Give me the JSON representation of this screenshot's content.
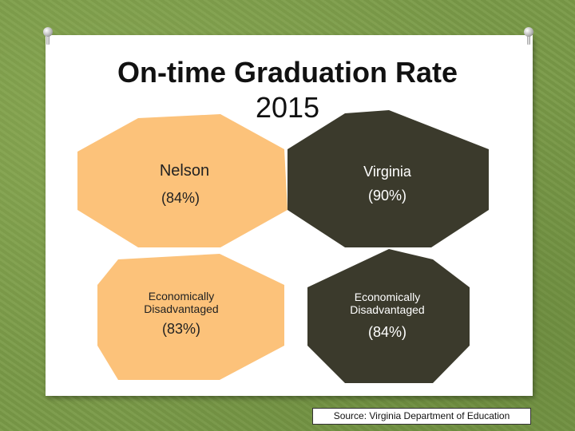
{
  "title": {
    "line1": "On-time Graduation Rate",
    "line2": "2015"
  },
  "hexagons": [
    {
      "name": "Nelson",
      "value": "(84%)",
      "color": "#fcc27a",
      "text_color": "#222222"
    },
    {
      "name": "Virginia",
      "value": "(90%)",
      "color": "#3b3a2c",
      "text_color": "#ffffff"
    },
    {
      "name": "Economically Disadvantaged",
      "value": "(83%)",
      "color": "#fcc27a",
      "text_color": "#222222"
    },
    {
      "name": "Economically Disadvantaged",
      "value": "(84%)",
      "color": "#3b3a2c",
      "text_color": "#ffffff"
    }
  ],
  "source": "Source: Virginia Department of Education",
  "colors": {
    "background": "#7a9a48",
    "slide": "#ffffff"
  },
  "icons": [
    "pushpin-icon",
    "pushpin-icon"
  ]
}
